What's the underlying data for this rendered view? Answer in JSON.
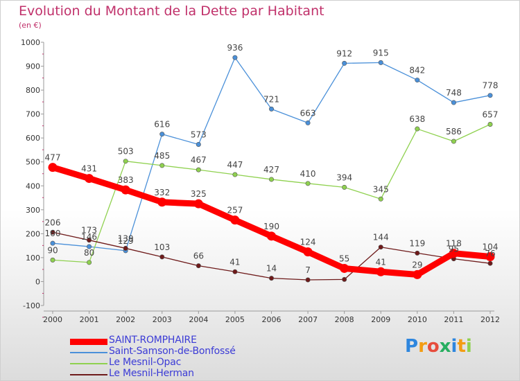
{
  "title": "Evolution du Montant de la Dette par Habitant",
  "unit": "(en €)",
  "chart_data": {
    "type": "line",
    "title": "Evolution du Montant de la Dette par Habitant",
    "subtitle": "(en €)",
    "x": [
      "2000",
      "2001",
      "2002",
      "2003",
      "2004",
      "2005",
      "2006",
      "2007",
      "2008",
      "2009",
      "2010",
      "2011",
      "2012"
    ],
    "ylim": [
      -100,
      1000
    ],
    "yticks": [
      "-100",
      "0",
      "100",
      "200",
      "300",
      "400",
      "500",
      "600",
      "700",
      "800",
      "900",
      "1000"
    ],
    "grid": false,
    "legend_position": "bottom-left",
    "series": [
      {
        "name": "SAINT-ROMPHAIRE",
        "color": "#ff0000",
        "values": [
          477,
          431,
          383,
          332,
          325,
          257,
          190,
          124,
          55,
          41,
          29,
          118,
          104
        ],
        "labels": [
          "477",
          "431",
          "383",
          "332",
          "325",
          "257",
          "190",
          "124",
          "55",
          "41",
          "29",
          "118",
          "104"
        ]
      },
      {
        "name": "Saint-Samson-de-Bonfossé",
        "color": "#4a90d9",
        "values": [
          160,
          146,
          129,
          616,
          573,
          936,
          721,
          663,
          912,
          915,
          842,
          748,
          778
        ],
        "labels": [
          "160",
          "146",
          "129",
          "616",
          "573",
          "936",
          "721",
          "663",
          "912",
          "915",
          "842",
          "748",
          "778"
        ]
      },
      {
        "name": "Le Mesnil-Opac",
        "color": "#8fd14f",
        "values": [
          90,
          80,
          503,
          485,
          467,
          447,
          427,
          410,
          394,
          345,
          638,
          586,
          657
        ],
        "labels": [
          "90",
          "80",
          "503",
          "485",
          "467",
          "447",
          "427",
          "410",
          "394",
          "345",
          "638",
          "586",
          "657"
        ]
      },
      {
        "name": "Le Mesnil-Herman",
        "color": "#6e1a1a",
        "values": [
          206,
          173,
          139,
          103,
          66,
          41,
          14,
          7,
          9,
          144,
          119,
          95,
          76
        ],
        "labels": [
          "206",
          "173",
          "139",
          "103",
          "66",
          "41",
          "14",
          "7",
          "",
          "144",
          "119",
          "95",
          "76"
        ]
      }
    ]
  },
  "logo": {
    "letters": [
      "P",
      "r",
      "o",
      "x",
      "i",
      "t",
      "i"
    ],
    "colors": [
      "#2e86de",
      "#f39c12",
      "#e74c3c",
      "#27ae60",
      "#2e86de",
      "#f39c12",
      "#8fd14f"
    ]
  }
}
